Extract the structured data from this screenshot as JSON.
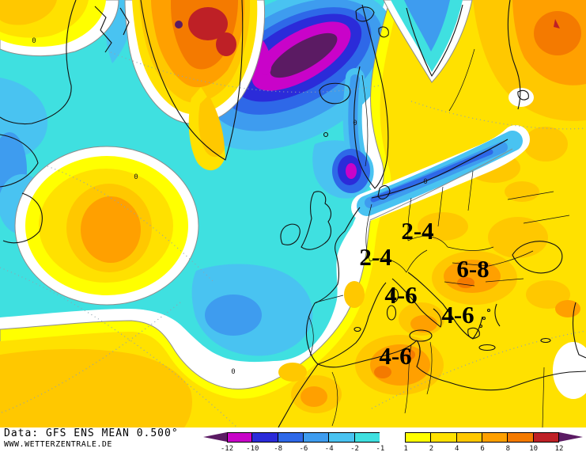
{
  "palette": {
    "extreme": "#5B1B63",
    "m12": "#C903C9",
    "m10": "#2B2BD9",
    "m8": "#2E68E8",
    "m6": "#3E9CEF",
    "m4": "#49C3F1",
    "m2": "#3FE0E0",
    "zero": "#FFFFFF",
    "p1": "#FFFF00",
    "p2": "#FFE100",
    "p4": "#FFC800",
    "p6": "#FFA000",
    "p8": "#F47A00",
    "p10": "#BE2026",
    "coast": "#111111",
    "contour": "#8c8c8c",
    "grid": "#8fa3b0"
  },
  "map": {
    "annotations": [
      {
        "label": "2-4"
      },
      {
        "label": "2-4"
      },
      {
        "label": "6-8"
      },
      {
        "label": "4-6"
      },
      {
        "label": "4-6"
      },
      {
        "label": "4-6"
      }
    ],
    "contour_labels": [
      {
        "label": "0"
      },
      {
        "label": "0"
      },
      {
        "label": "0"
      },
      {
        "label": "0"
      },
      {
        "label": "0"
      }
    ]
  },
  "footer": {
    "line1": "Data: GFS ENS MEAN 0.500°",
    "line2": "WWW.WETTERZENTRALE.DE"
  },
  "colorbar": {
    "arrow_color": "#5B1B63",
    "ticks": [
      "-12",
      "-10",
      "-8",
      "-6",
      "-4",
      "-2",
      "-1",
      "1",
      "2",
      "4",
      "6",
      "8",
      "10",
      "12"
    ],
    "segment_colors": [
      "#C903C9",
      "#2B2BD9",
      "#2E68E8",
      "#3E9CEF",
      "#49C3F1",
      "#3FE0E0",
      "#FFFFFF",
      "#FFFF00",
      "#FFE100",
      "#FFC800",
      "#FFA000",
      "#F47A00",
      "#BE2026"
    ]
  }
}
